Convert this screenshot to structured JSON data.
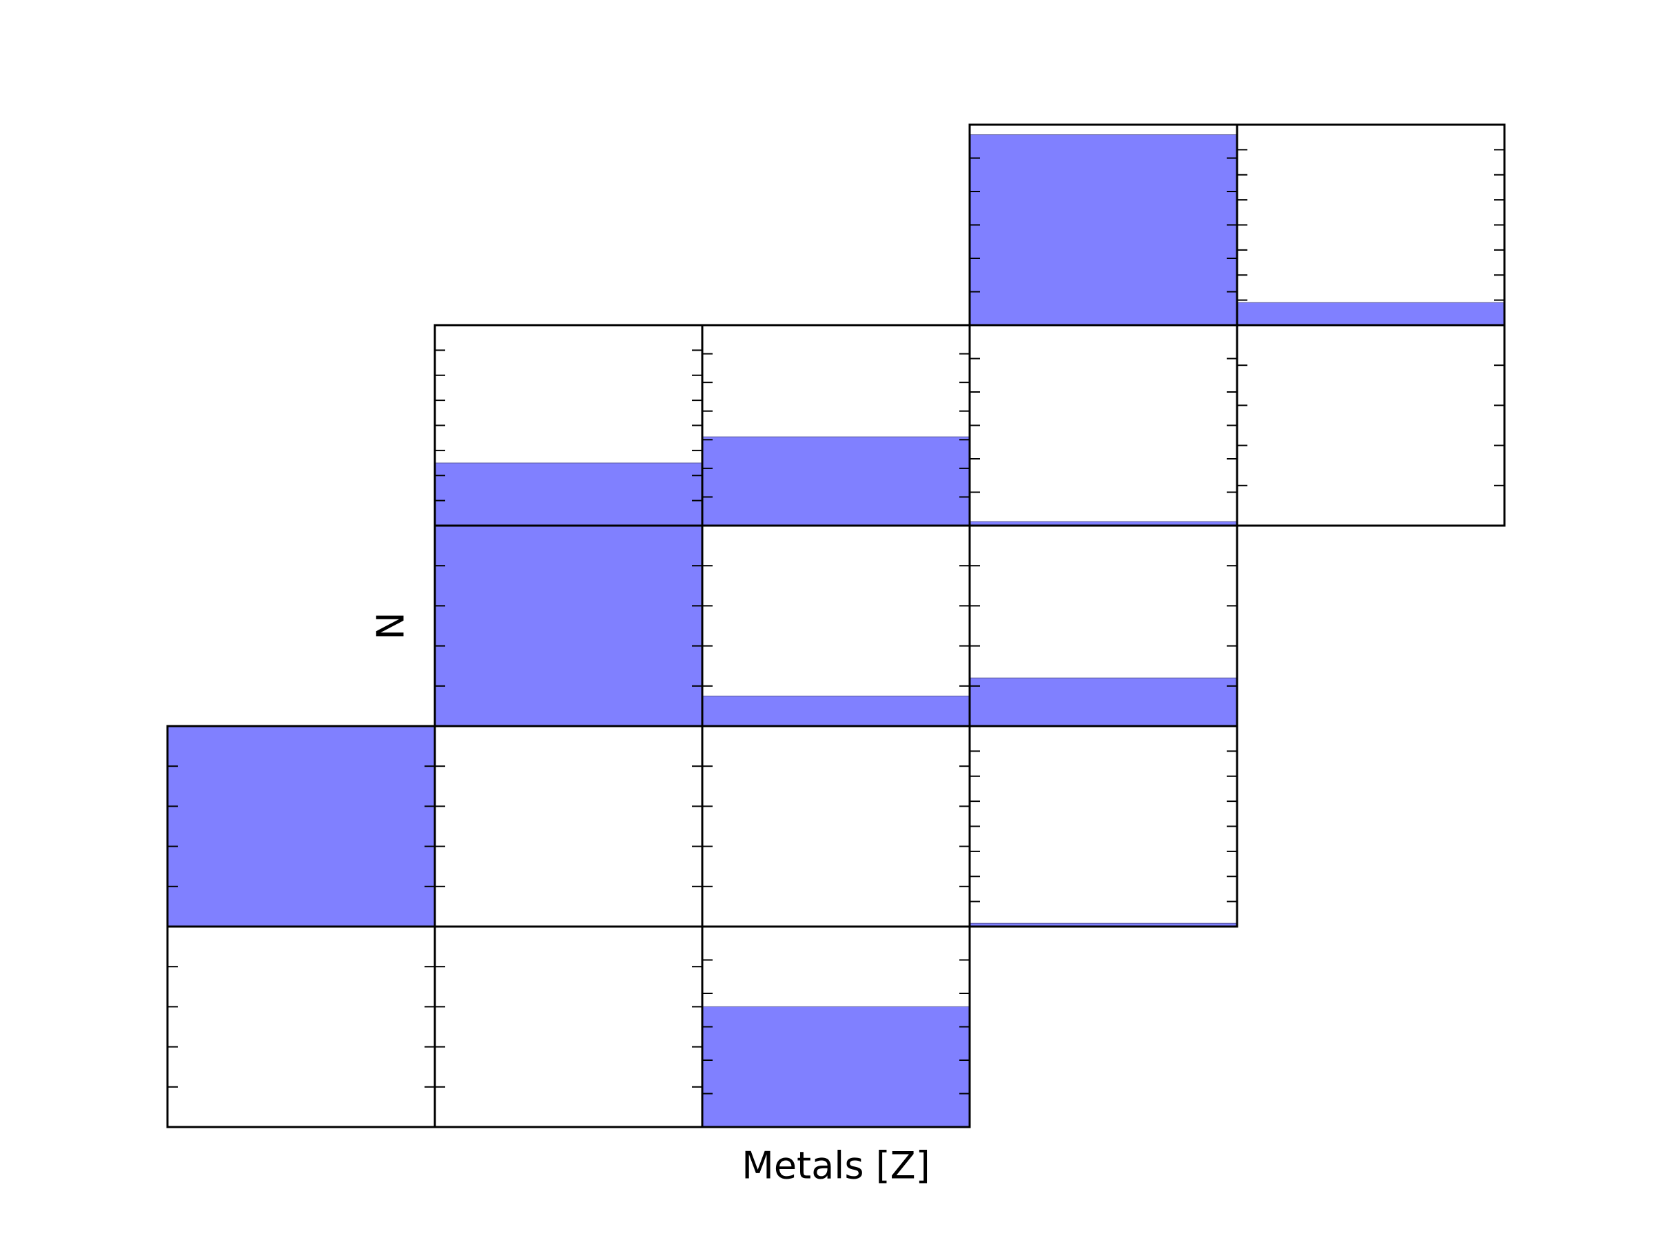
{
  "chart_data": [
    {
      "type": "bar",
      "values": [
        5.7
      ],
      "ylim": [
        0,
        6
      ],
      "yticks": [
        1,
        2,
        3,
        4,
        5
      ],
      "color": "#8080ff"
    },
    {
      "type": "bar",
      "values": [
        0.9
      ],
      "ylim": [
        0,
        8
      ],
      "yticks": [
        1,
        2,
        3,
        4,
        5,
        6,
        7
      ],
      "color": "#8080ff"
    },
    {
      "type": "bar",
      "values": [
        2.5
      ],
      "ylim": [
        0,
        8
      ],
      "yticks": [
        1,
        2,
        3,
        4,
        5,
        6,
        7
      ],
      "color": "#8080ff"
    },
    {
      "type": "bar",
      "values": [
        3.1
      ],
      "ylim": [
        0,
        7
      ],
      "yticks": [
        1,
        2,
        3,
        4,
        5,
        6
      ],
      "color": "#8080ff"
    },
    {
      "type": "bar",
      "values": [
        0.12
      ],
      "ylim": [
        0,
        6
      ],
      "yticks": [
        1,
        2,
        3,
        4,
        5
      ],
      "color": "#8080ff"
    },
    {
      "type": "bar",
      "values": [
        0
      ],
      "ylim": [
        0,
        5
      ],
      "yticks": [
        1,
        2,
        3,
        4
      ],
      "color": "#8080ff"
    },
    {
      "type": "bar",
      "values": [
        5
      ],
      "ylim": [
        0,
        5
      ],
      "yticks": [
        1,
        2,
        3,
        4
      ],
      "color": "#8080ff",
      "ylabel": "N"
    },
    {
      "type": "bar",
      "values": [
        0.75
      ],
      "ylim": [
        0,
        5
      ],
      "yticks": [
        1,
        2,
        3,
        4
      ],
      "color": "#8080ff"
    },
    {
      "type": "bar",
      "values": [
        1.2
      ],
      "ylim": [
        0,
        5
      ],
      "yticks": [
        1,
        2,
        3,
        4
      ],
      "color": "#8080ff"
    },
    {
      "type": "bar",
      "values": [
        5
      ],
      "ylim": [
        0,
        5
      ],
      "yticks": [
        1,
        2,
        3,
        4
      ],
      "color": "#8080ff"
    },
    {
      "type": "bar",
      "values": [
        0
      ],
      "ylim": [
        0,
        5
      ],
      "yticks": [
        1,
        2,
        3,
        4
      ],
      "color": "#8080ff"
    },
    {
      "type": "bar",
      "values": [
        0
      ],
      "ylim": [
        0,
        5
      ],
      "yticks": [
        1,
        2,
        3,
        4
      ],
      "color": "#8080ff"
    },
    {
      "type": "bar",
      "values": [
        0.13
      ],
      "ylim": [
        0,
        8
      ],
      "yticks": [
        1,
        2,
        3,
        4,
        5,
        6,
        7
      ],
      "color": "#8080ff"
    },
    {
      "type": "bar",
      "values": [
        0
      ],
      "ylim": [
        0,
        5
      ],
      "yticks": [
        1,
        2,
        3,
        4
      ],
      "color": "#8080ff"
    },
    {
      "type": "bar",
      "values": [
        0
      ],
      "ylim": [
        0,
        5
      ],
      "yticks": [
        1,
        2,
        3,
        4
      ],
      "color": "#8080ff"
    },
    {
      "type": "bar",
      "values": [
        3.6
      ],
      "ylim": [
        0,
        6
      ],
      "yticks": [
        1,
        2,
        3,
        4,
        5
      ],
      "color": "#8080ff",
      "xlabel": "Metals [Z]"
    }
  ]
}
